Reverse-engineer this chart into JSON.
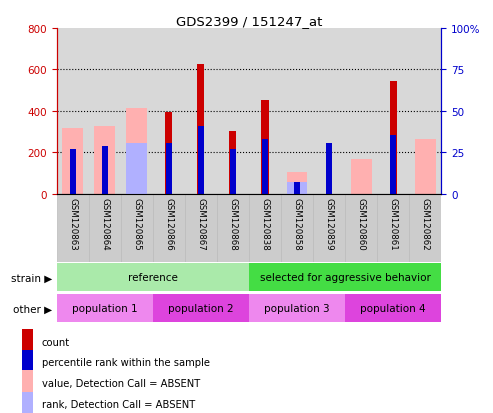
{
  "title": "GDS2399 / 151247_at",
  "samples": [
    "GSM120863",
    "GSM120864",
    "GSM120865",
    "GSM120866",
    "GSM120867",
    "GSM120868",
    "GSM120838",
    "GSM120858",
    "GSM120859",
    "GSM120860",
    "GSM120861",
    "GSM120862"
  ],
  "count_values": [
    0,
    0,
    0,
    395,
    625,
    300,
    450,
    0,
    0,
    0,
    545,
    0
  ],
  "rank_values": [
    215,
    230,
    0,
    245,
    325,
    215,
    265,
    55,
    245,
    0,
    285,
    0
  ],
  "absent_value": [
    315,
    325,
    415,
    0,
    0,
    0,
    0,
    105,
    0,
    165,
    0,
    265
  ],
  "absent_rank": [
    0,
    0,
    245,
    0,
    0,
    0,
    0,
    55,
    0,
    0,
    0,
    0
  ],
  "ylim_left": [
    0,
    800
  ],
  "yticks_left": [
    0,
    200,
    400,
    600,
    800
  ],
  "ytick_labels_left": [
    "0",
    "200",
    "400",
    "600",
    "800"
  ],
  "ytick_labels_right": [
    "0",
    "25",
    "50",
    "75",
    "100%"
  ],
  "color_count": "#cc0000",
  "color_rank": "#0000cc",
  "color_absent_value": "#ffb0b0",
  "color_absent_rank": "#b0b0ff",
  "strain_groups": [
    {
      "label": "reference",
      "start": 0,
      "end": 6,
      "color": "#aaeaaa"
    },
    {
      "label": "selected for aggressive behavior",
      "start": 6,
      "end": 12,
      "color": "#44dd44"
    }
  ],
  "other_groups": [
    {
      "label": "population 1",
      "start": 0,
      "end": 3,
      "color": "#ee88ee"
    },
    {
      "label": "population 2",
      "start": 3,
      "end": 6,
      "color": "#dd44dd"
    },
    {
      "label": "population 3",
      "start": 6,
      "end": 9,
      "color": "#ee88ee"
    },
    {
      "label": "population 4",
      "start": 9,
      "end": 12,
      "color": "#dd44dd"
    }
  ],
  "legend_items": [
    {
      "label": "count",
      "color": "#cc0000"
    },
    {
      "label": "percentile rank within the sample",
      "color": "#0000cc"
    },
    {
      "label": "value, Detection Call = ABSENT",
      "color": "#ffb0b0"
    },
    {
      "label": "rank, Detection Call = ABSENT",
      "color": "#b0b0ff"
    }
  ],
  "bg_color": "#d8d8d8",
  "tick_color_left": "#cc0000",
  "tick_color_right": "#0000cc"
}
